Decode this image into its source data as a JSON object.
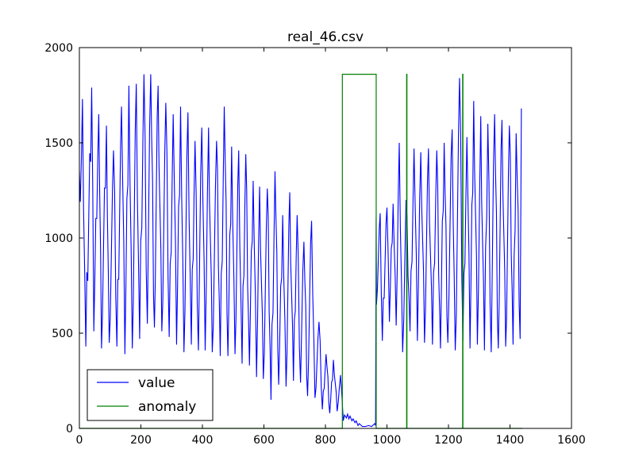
{
  "chart_data": {
    "type": "line",
    "title": "real_46.csv",
    "xlabel": "",
    "ylabel": "",
    "xlim": [
      0,
      1600
    ],
    "ylim": [
      0,
      2000
    ],
    "xticks": [
      0,
      200,
      400,
      600,
      800,
      1000,
      1200,
      1400,
      1600
    ],
    "yticks": [
      0,
      500,
      1000,
      1500,
      2000
    ],
    "grid": false,
    "legend_position": "lower-left",
    "series": [
      {
        "name": "value",
        "color": "#0000ff",
        "peaks_x": [
          0,
          10,
          40,
          63,
          88,
          111,
          137,
          161,
          185,
          210,
          232,
          256,
          281,
          305,
          329,
          353,
          376,
          398,
          420,
          446,
          471,
          495,
          518,
          541,
          565,
          586,
          611,
          636,
          661,
          684,
          708,
          730,
          755,
          779,
          802,
          826,
          849
        ],
        "peaks_y": [
          1350,
          1730,
          1790,
          1650,
          1590,
          1460,
          1690,
          1800,
          1810,
          1860,
          1860,
          1800,
          1710,
          1650,
          1690,
          1660,
          1510,
          1580,
          1580,
          1510,
          1690,
          1480,
          1460,
          1440,
          1300,
          1270,
          1260,
          1350,
          1120,
          1240,
          1120,
          980,
          1090,
          560,
          390,
          360,
          280
        ],
        "troughs_x": [
          3,
          21,
          47,
          72,
          97,
          122,
          148,
          172,
          196,
          221,
          244,
          268,
          292,
          316,
          340,
          364,
          387,
          409,
          432,
          458,
          483,
          506,
          529,
          553,
          576,
          598,
          623,
          648,
          672,
          696,
          719,
          742,
          766,
          790,
          814,
          838,
          854
        ],
        "troughs_y": [
          1190,
          430,
          510,
          420,
          450,
          430,
          390,
          420,
          470,
          550,
          530,
          510,
          480,
          440,
          400,
          440,
          410,
          410,
          400,
          380,
          380,
          390,
          340,
          330,
          270,
          260,
          150,
          230,
          220,
          250,
          240,
          170,
          160,
          100,
          80,
          90,
          160
        ],
        "gap": {
          "x": [
            858,
            862,
            868,
            872,
            876,
            880,
            886,
            890,
            896,
            900,
            906,
            910,
            920,
            930,
            940,
            950,
            960,
            963
          ],
          "y": [
            40,
            70,
            55,
            75,
            50,
            65,
            40,
            50,
            30,
            40,
            15,
            25,
            10,
            10,
            15,
            10,
            25,
            15
          ]
        },
        "peaks2_x": [
          965,
          978,
          1000,
          1020,
          1040,
          1062,
          1088,
          1110,
          1135,
          1162,
          1186,
          1212,
          1236,
          1260,
          1282,
          1305,
          1328,
          1350,
          1374,
          1398,
          1420,
          1437
        ],
        "peaks2_y": [
          1110,
          1130,
          1160,
          1180,
          1500,
          1200,
          1470,
          1450,
          1470,
          1460,
          1500,
          1570,
          1840,
          1530,
          1720,
          1640,
          1600,
          1650,
          1620,
          1590,
          1550,
          1680
        ],
        "troughs2_x": [
          966,
          985,
          1008,
          1030,
          1051,
          1075,
          1099,
          1122,
          1148,
          1174,
          1198,
          1222,
          1247,
          1270,
          1294,
          1317,
          1339,
          1362,
          1386,
          1410,
          1433
        ],
        "troughs2_y": [
          650,
          460,
          560,
          540,
          400,
          510,
          460,
          450,
          440,
          420,
          450,
          410,
          460,
          420,
          440,
          410,
          400,
          420,
          430,
          440,
          470
        ]
      },
      {
        "name": "anomaly",
        "color": "#008000",
        "points": [
          [
            0,
            0
          ],
          [
            855,
            0
          ],
          [
            855,
            1860
          ],
          [
            965,
            1860
          ],
          [
            965,
            0
          ],
          [
            1064,
            0
          ],
          [
            1064,
            1860
          ],
          [
            1065,
            1860
          ],
          [
            1065,
            0
          ],
          [
            1246,
            0
          ],
          [
            1246,
            1860
          ],
          [
            1247,
            1860
          ],
          [
            1247,
            0
          ],
          [
            1440,
            0
          ]
        ]
      }
    ]
  }
}
